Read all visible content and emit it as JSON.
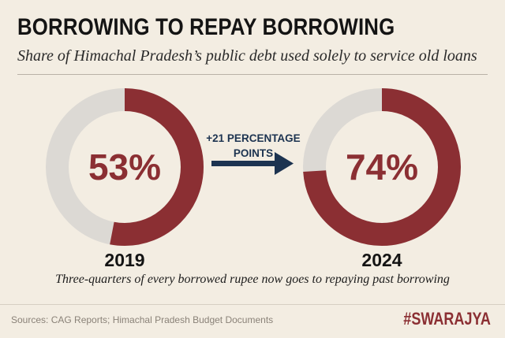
{
  "header": {
    "title": "BORROWING TO REPAY BORROWING",
    "subtitle": "Share of Himachal Pradesh’s public debt used solely to service old loans"
  },
  "chart_data": {
    "type": "pie",
    "variant": "donut",
    "title": "BORROWING TO REPAY BORROWING",
    "subtitle": "Share of Himachal Pradesh’s public debt used solely to service old loans",
    "categories": [
      "2019",
      "2024"
    ],
    "values": [
      53,
      74
    ],
    "value_labels": [
      "53%",
      "74%"
    ],
    "unit": "%",
    "change_label_lines": [
      "+21 PERCENTAGE",
      "POINTS"
    ],
    "colors": {
      "filled": "#8b2f33",
      "remainder": "#dcd9d4",
      "arrow": "#1c3350"
    }
  },
  "footer": {
    "caption": "Three-quarters of every borrowed rupee now goes to repaying past borrowing",
    "source": "Sources: CAG Reports; Himachal Pradesh Budget Documents",
    "brand": "#SWARAJYA"
  }
}
